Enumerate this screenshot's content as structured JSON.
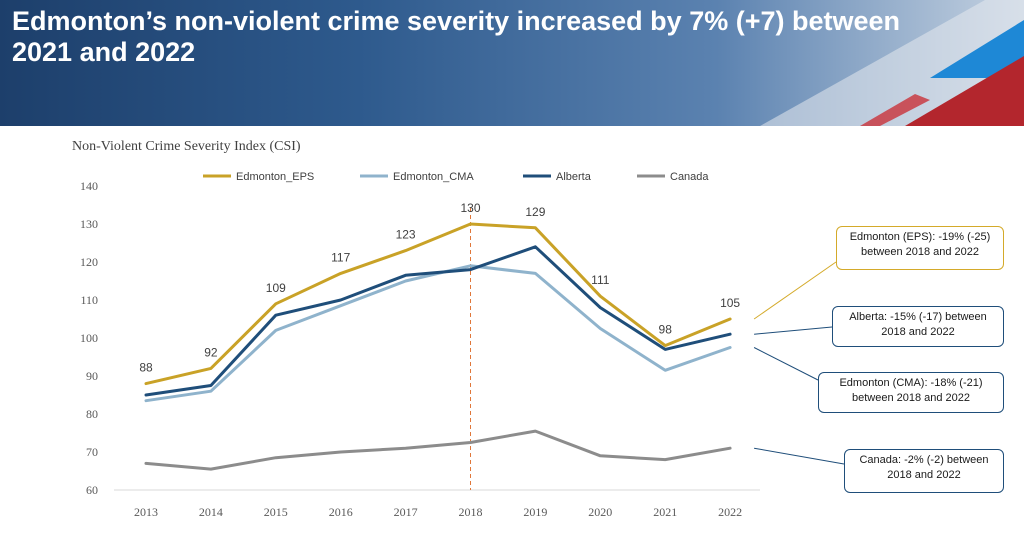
{
  "header": {
    "title": "Edmonton’s non-violent crime severity increased by 7% (+7) between 2021 and 2022"
  },
  "chart_data": {
    "type": "line",
    "title": "Non-Violent Crime Severity Index (CSI)",
    "xlabel": "",
    "ylabel": "",
    "ylim": [
      60,
      140
    ],
    "yticks": [
      60,
      70,
      80,
      90,
      100,
      110,
      120,
      130,
      140
    ],
    "grid": false,
    "legend_position": "top",
    "x": [
      "2013",
      "2014",
      "2015",
      "2016",
      "2017",
      "2018",
      "2019",
      "2020",
      "2021",
      "2022"
    ],
    "series": [
      {
        "name": "Edmonton_EPS",
        "color": "#c9a227",
        "values": [
          88,
          92,
          109,
          117,
          123,
          130,
          129,
          111,
          98,
          105
        ],
        "labels": [
          "88",
          "92",
          "109",
          "117",
          "123",
          "130",
          "129",
          "111",
          "98",
          "105"
        ]
      },
      {
        "name": "Edmonton_CMA",
        "color": "#8fb3cc",
        "values": [
          83.5,
          86,
          102,
          108.5,
          115,
          119,
          117,
          102.5,
          91.5,
          97.5
        ]
      },
      {
        "name": "Alberta",
        "color": "#1f4e7a",
        "values": [
          85,
          87.5,
          106,
          110,
          116.5,
          118,
          124,
          108,
          97,
          101
        ]
      },
      {
        "name": "Canada",
        "color": "#8c8c8c",
        "values": [
          67,
          65.5,
          68.5,
          70,
          71,
          72.5,
          75.5,
          69,
          68,
          71
        ]
      }
    ],
    "reference_line": {
      "x": "2018",
      "color": "#e0773a"
    },
    "annotations": [
      {
        "series": "Edmonton_EPS",
        "border": "#d4aa2a",
        "lines": [
          "Edmonton (EPS): -19% (-25)",
          "between 2018 and 2022"
        ]
      },
      {
        "series": "Alberta",
        "border": "#1f4e7a",
        "lines": [
          "Alberta: -15% (-17) between",
          "2018 and 2022"
        ]
      },
      {
        "series": "Edmonton_CMA",
        "border": "#1f4e7a",
        "lines": [
          "Edmonton (CMA): -18% (-21)",
          "between 2018 and 2022"
        ]
      },
      {
        "series": "Canada",
        "border": "#1f4e7a",
        "lines": [
          "Canada: -2% (-2) between",
          "2018 and 2022"
        ]
      }
    ]
  }
}
